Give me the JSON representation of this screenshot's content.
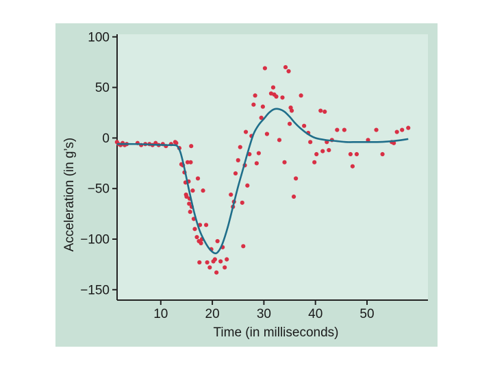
{
  "chart_data": {
    "type": "scatter",
    "title": "",
    "xlabel": "Time (in milliseconds)",
    "ylabel": "Acceleration (in g’s)",
    "xlim": [
      0,
      60
    ],
    "ylim": [
      -160,
      100
    ],
    "xticks": [
      10,
      20,
      30,
      40,
      50
    ],
    "xtick_labels": [
      "10",
      "20",
      "30",
      "40",
      "50"
    ],
    "yticks": [
      100,
      50,
      0,
      -50,
      -100,
      -150
    ],
    "ytick_labels": [
      "100",
      "50",
      "0",
      "−50",
      "−100",
      "−150"
    ],
    "grid": false,
    "colors": {
      "background": "#c9e1d6",
      "plot_area": "#d9ece4",
      "points": "#d83045",
      "curve": "#1f6e8a",
      "axis": "#222222"
    },
    "series": [
      {
        "type": "scatter",
        "points": [
          [
            1.5,
            -4
          ],
          [
            1.8,
            -6
          ],
          [
            2.2,
            -7
          ],
          [
            2.6,
            -5
          ],
          [
            3.0,
            -7
          ],
          [
            3.4,
            -6
          ],
          [
            5.5,
            -5
          ],
          [
            6.2,
            -7
          ],
          [
            7.0,
            -6
          ],
          [
            7.8,
            -6
          ],
          [
            8.4,
            -7
          ],
          [
            9.0,
            -5
          ],
          [
            9.6,
            -7
          ],
          [
            10.4,
            -6
          ],
          [
            11.0,
            -8
          ],
          [
            12.0,
            -6
          ],
          [
            12.8,
            -4
          ],
          [
            13.0,
            -5
          ],
          [
            13.6,
            -10
          ],
          [
            14.0,
            -26
          ],
          [
            14.3,
            -27
          ],
          [
            14.6,
            -34
          ],
          [
            14.8,
            -44
          ],
          [
            14.9,
            -56
          ],
          [
            15.0,
            -58
          ],
          [
            15.2,
            -24
          ],
          [
            15.4,
            -43
          ],
          [
            15.5,
            -65
          ],
          [
            15.6,
            -60
          ],
          [
            15.7,
            -73
          ],
          [
            15.8,
            -24
          ],
          [
            15.9,
            -8
          ],
          [
            16.0,
            -68
          ],
          [
            16.2,
            -52
          ],
          [
            16.4,
            -80
          ],
          [
            16.6,
            -90
          ],
          [
            17.0,
            -98
          ],
          [
            17.2,
            -40
          ],
          [
            17.4,
            -102
          ],
          [
            17.6,
            -86
          ],
          [
            17.8,
            -104
          ],
          [
            18.0,
            -100
          ],
          [
            17.5,
            -123
          ],
          [
            18.2,
            -52
          ],
          [
            18.8,
            -86
          ],
          [
            19.0,
            -123
          ],
          [
            19.5,
            -128
          ],
          [
            19.8,
            -110
          ],
          [
            20.2,
            -122
          ],
          [
            20.5,
            -120
          ],
          [
            20.8,
            -133
          ],
          [
            21.0,
            -102
          ],
          [
            21.6,
            -122
          ],
          [
            22.0,
            -108
          ],
          [
            22.4,
            -128
          ],
          [
            22.8,
            -120
          ],
          [
            23.6,
            -56
          ],
          [
            24.0,
            -68
          ],
          [
            24.2,
            -63
          ],
          [
            24.5,
            -35
          ],
          [
            25.0,
            -22
          ],
          [
            25.4,
            -9
          ],
          [
            25.8,
            -64
          ],
          [
            26.0,
            -107
          ],
          [
            26.3,
            -27
          ],
          [
            26.8,
            -47
          ],
          [
            26.5,
            6
          ],
          [
            27.2,
            -16
          ],
          [
            27.6,
            2
          ],
          [
            28.0,
            33
          ],
          [
            28.3,
            42
          ],
          [
            28.6,
            -25
          ],
          [
            29.0,
            -15
          ],
          [
            29.5,
            20
          ],
          [
            29.8,
            31
          ],
          [
            30.2,
            69
          ],
          [
            30.6,
            4
          ],
          [
            31.4,
            44
          ],
          [
            31.8,
            50
          ],
          [
            32.0,
            43
          ],
          [
            32.4,
            41
          ],
          [
            33.0,
            -2
          ],
          [
            33.6,
            40
          ],
          [
            34.0,
            -24
          ],
          [
            34.2,
            70
          ],
          [
            34.8,
            66
          ],
          [
            35.0,
            14
          ],
          [
            35.2,
            30
          ],
          [
            35.4,
            27
          ],
          [
            35.8,
            -58
          ],
          [
            36.2,
            -40
          ],
          [
            37.2,
            42
          ],
          [
            37.8,
            12
          ],
          [
            38.6,
            5
          ],
          [
            39.0,
            -4
          ],
          [
            39.8,
            -24
          ],
          [
            40.2,
            -16
          ],
          [
            41.0,
            27
          ],
          [
            41.4,
            -13
          ],
          [
            41.8,
            26
          ],
          [
            42.2,
            -4
          ],
          [
            42.6,
            -12
          ],
          [
            43.2,
            -2
          ],
          [
            44.2,
            8
          ],
          [
            45.6,
            8
          ],
          [
            46.8,
            -16
          ],
          [
            47.2,
            -28
          ],
          [
            48.0,
            -16
          ],
          [
            50.2,
            -2
          ],
          [
            51.8,
            8
          ],
          [
            53.0,
            -16
          ],
          [
            54.8,
            -4
          ],
          [
            55.2,
            -5
          ],
          [
            55.8,
            6
          ],
          [
            56.8,
            8
          ],
          [
            58.0,
            10
          ]
        ]
      },
      {
        "type": "line",
        "points": [
          [
            1.5,
            -6
          ],
          [
            5,
            -6
          ],
          [
            8,
            -6.5
          ],
          [
            11,
            -7
          ],
          [
            12.5,
            -7
          ],
          [
            13.2,
            -8
          ],
          [
            13.8,
            -14
          ],
          [
            14.5,
            -28
          ],
          [
            15.5,
            -52
          ],
          [
            16.5,
            -74
          ],
          [
            17.5,
            -91
          ],
          [
            18.5,
            -102
          ],
          [
            19.5,
            -110
          ],
          [
            20.5,
            -114
          ],
          [
            21.2,
            -112
          ],
          [
            22.0,
            -104
          ],
          [
            23.0,
            -88
          ],
          [
            24.0,
            -68
          ],
          [
            25.0,
            -48
          ],
          [
            26.0,
            -30
          ],
          [
            27.0,
            -12
          ],
          [
            28.0,
            4
          ],
          [
            29.0,
            13
          ],
          [
            30.0,
            19
          ],
          [
            31.0,
            25
          ],
          [
            32.0,
            28.5
          ],
          [
            33.0,
            28.5
          ],
          [
            34.0,
            26
          ],
          [
            35.0,
            21
          ],
          [
            36.0,
            15
          ],
          [
            37.0,
            10
          ],
          [
            38.5,
            4
          ],
          [
            40.0,
            0
          ],
          [
            42.0,
            -2
          ],
          [
            44.0,
            -3
          ],
          [
            46.0,
            -4
          ],
          [
            48.0,
            -4
          ],
          [
            50.0,
            -4
          ],
          [
            52.0,
            -4
          ],
          [
            54.0,
            -3.5
          ],
          [
            56.0,
            -2.5
          ],
          [
            58.0,
            -1
          ]
        ]
      }
    ]
  }
}
